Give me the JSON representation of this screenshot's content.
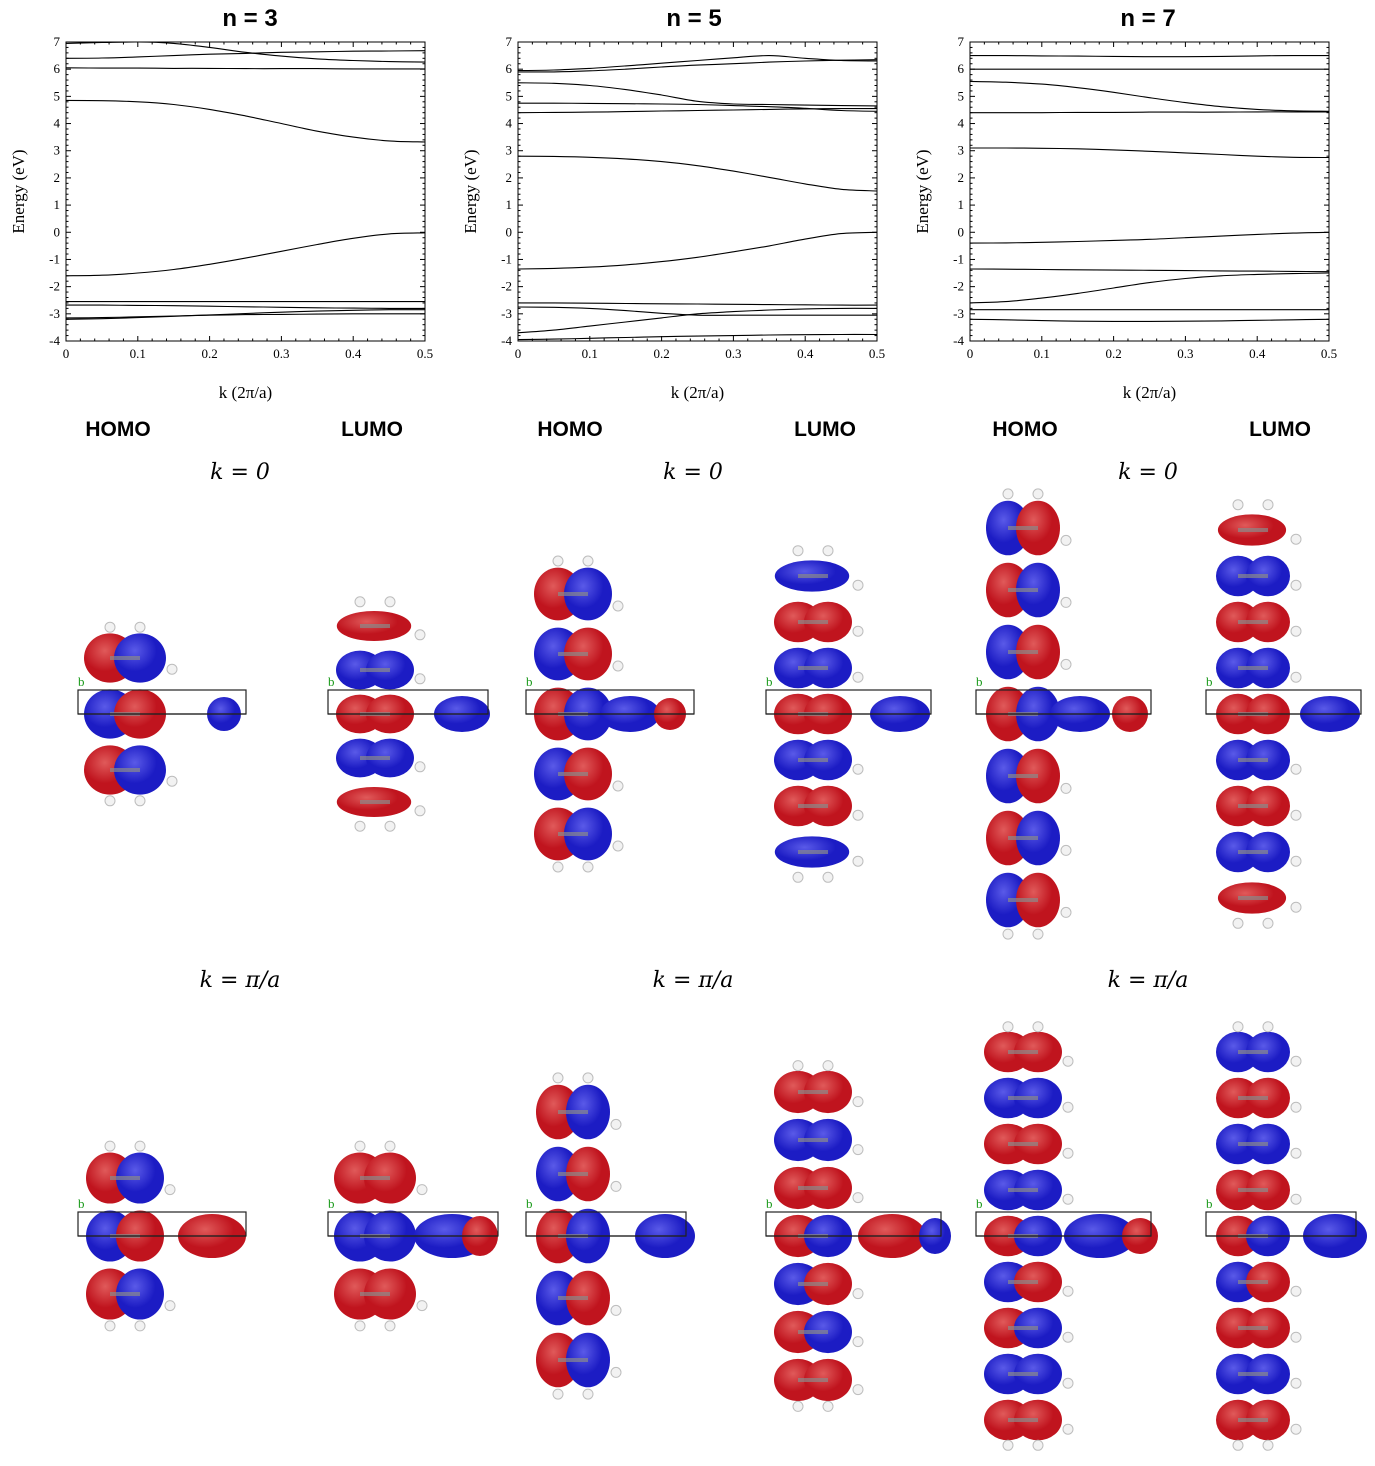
{
  "panel_titles": [
    "n = 3",
    "n = 5",
    "n = 7"
  ],
  "orbital_labels": [
    "HOMO",
    "LUMO",
    "HOMO",
    "LUMO",
    "HOMO",
    "LUMO"
  ],
  "k_labels": {
    "top": [
      "k = 0",
      "k = 0",
      "k = 0"
    ],
    "bottom": [
      "k = π/a",
      "k = π/a",
      "k = π/a"
    ]
  },
  "colors": {
    "positive_lobe": "#c0141e",
    "negative_lobe": "#1c1cc4",
    "cell_marker": "#1a9a1a"
  },
  "cell_axis_label": "b",
  "chart_data": [
    {
      "type": "line",
      "title": "n = 3",
      "xlabel": "k (2π/a)",
      "ylabel": "Energy (eV)",
      "xlim": [
        0,
        0.5
      ],
      "ylim": [
        -4,
        7
      ],
      "x_ticks": [
        "0",
        "0.1",
        "0.2",
        "0.3",
        "0.4",
        "0.5"
      ],
      "y_ticks": [
        "-4",
        "-3",
        "-2",
        "-1",
        "0",
        "1",
        "2",
        "3",
        "4",
        "5",
        "6",
        "7"
      ],
      "grid": false,
      "x": [
        0,
        0.05,
        0.1,
        0.15,
        0.2,
        0.25,
        0.3,
        0.35,
        0.4,
        0.45,
        0.5
      ],
      "series": [
        {
          "values": [
            -3.2,
            -3.18,
            -3.14,
            -3.09,
            -3.04,
            -2.99,
            -2.94,
            -2.9,
            -2.87,
            -2.85,
            -2.85
          ]
        },
        {
          "values": [
            -3.15,
            -3.14,
            -3.11,
            -3.08,
            -3.05,
            -3.03,
            -3.02,
            -3.01,
            -3.0,
            -3.0,
            -3.0
          ]
        },
        {
          "values": [
            -2.68,
            -2.68,
            -2.69,
            -2.7,
            -2.72,
            -2.74,
            -2.76,
            -2.78,
            -2.79,
            -2.8,
            -2.8
          ]
        },
        {
          "values": [
            -2.55,
            -2.55,
            -2.55,
            -2.55,
            -2.55,
            -2.55,
            -2.55,
            -2.55,
            -2.55,
            -2.55,
            -2.55
          ]
        },
        {
          "values": [
            -1.6,
            -1.58,
            -1.5,
            -1.37,
            -1.18,
            -0.95,
            -0.7,
            -0.45,
            -0.22,
            -0.06,
            -0.02
          ]
        },
        {
          "values": [
            4.85,
            4.84,
            4.8,
            4.7,
            4.52,
            4.28,
            4.0,
            3.72,
            3.5,
            3.36,
            3.32
          ]
        },
        {
          "values": [
            6.05,
            6.04,
            6.04,
            6.03,
            6.03,
            6.02,
            6.02,
            6.02,
            6.01,
            6.01,
            6.01
          ]
        },
        {
          "values": [
            6.4,
            6.41,
            6.45,
            6.5,
            6.55,
            6.58,
            6.62,
            6.64,
            6.66,
            6.67,
            6.68
          ]
        },
        {
          "values": [
            6.95,
            6.98,
            7.0,
            6.95,
            6.8,
            6.62,
            6.48,
            6.38,
            6.32,
            6.28,
            6.26
          ]
        }
      ]
    },
    {
      "type": "line",
      "title": "n = 5",
      "xlabel": "k (2π/a)",
      "ylabel": "Energy (eV)",
      "xlim": [
        0,
        0.5
      ],
      "ylim": [
        -4,
        7
      ],
      "x_ticks": [
        "0",
        "0.1",
        "0.2",
        "0.3",
        "0.4",
        "0.5"
      ],
      "y_ticks": [
        "-4",
        "-3",
        "-2",
        "-1",
        "0",
        "1",
        "2",
        "3",
        "4",
        "5",
        "6",
        "7"
      ],
      "grid": false,
      "x": [
        0,
        0.05,
        0.1,
        0.15,
        0.2,
        0.25,
        0.3,
        0.35,
        0.4,
        0.45,
        0.5
      ],
      "series": [
        {
          "values": [
            -3.95,
            -3.93,
            -3.9,
            -3.87,
            -3.84,
            -3.82,
            -3.8,
            -3.78,
            -3.77,
            -3.76,
            -3.76
          ]
        },
        {
          "values": [
            -3.7,
            -3.6,
            -3.45,
            -3.3,
            -3.15,
            -3.0,
            -2.92,
            -2.86,
            -2.82,
            -2.8,
            -2.8
          ]
        },
        {
          "values": [
            -2.75,
            -2.76,
            -2.8,
            -2.88,
            -2.98,
            -3.05,
            -3.05,
            -3.05,
            -3.05,
            -3.05,
            -3.05
          ]
        },
        {
          "values": [
            -2.6,
            -2.6,
            -2.61,
            -2.62,
            -2.63,
            -2.64,
            -2.65,
            -2.66,
            -2.67,
            -2.68,
            -2.68
          ]
        },
        {
          "values": [
            -1.35,
            -1.33,
            -1.28,
            -1.2,
            -1.08,
            -0.92,
            -0.72,
            -0.5,
            -0.25,
            -0.05,
            0.0
          ]
        },
        {
          "values": [
            2.8,
            2.79,
            2.76,
            2.7,
            2.6,
            2.45,
            2.25,
            2.02,
            1.78,
            1.58,
            1.52
          ]
        },
        {
          "values": [
            4.4,
            4.41,
            4.42,
            4.44,
            4.46,
            4.48,
            4.5,
            4.52,
            4.54,
            4.55,
            4.55
          ]
        },
        {
          "values": [
            4.75,
            4.75,
            4.74,
            4.73,
            4.72,
            4.7,
            4.66,
            4.62,
            4.56,
            4.48,
            4.45
          ]
        },
        {
          "values": [
            5.5,
            5.48,
            5.4,
            5.25,
            5.05,
            4.82,
            4.72,
            4.7,
            4.68,
            4.66,
            4.65
          ]
        },
        {
          "values": [
            5.9,
            5.9,
            5.94,
            6.0,
            6.08,
            6.15,
            6.2,
            6.26,
            6.3,
            6.33,
            6.35
          ]
        },
        {
          "values": [
            5.95,
            5.97,
            6.03,
            6.12,
            6.22,
            6.32,
            6.42,
            6.5,
            6.4,
            6.32,
            6.3
          ]
        }
      ]
    },
    {
      "type": "line",
      "title": "n = 7",
      "xlabel": "k (2π/a)",
      "ylabel": "Energy (eV)",
      "xlim": [
        0,
        0.5
      ],
      "ylim": [
        -4,
        7
      ],
      "x_ticks": [
        "0",
        "0.1",
        "0.2",
        "0.3",
        "0.4",
        "0.5"
      ],
      "y_ticks": [
        "-4",
        "-3",
        "-2",
        "-1",
        "0",
        "1",
        "2",
        "3",
        "4",
        "5",
        "6",
        "7"
      ],
      "grid": false,
      "x": [
        0,
        0.05,
        0.1,
        0.15,
        0.2,
        0.25,
        0.3,
        0.35,
        0.4,
        0.45,
        0.5
      ],
      "series": [
        {
          "values": [
            -3.2,
            -3.22,
            -3.25,
            -3.27,
            -3.28,
            -3.28,
            -3.27,
            -3.26,
            -3.24,
            -3.22,
            -3.2
          ]
        },
        {
          "values": [
            -2.85,
            -2.85,
            -2.85,
            -2.85,
            -2.85,
            -2.85,
            -2.85,
            -2.85,
            -2.85,
            -2.85,
            -2.85
          ]
        },
        {
          "values": [
            -2.6,
            -2.55,
            -2.42,
            -2.25,
            -2.05,
            -1.85,
            -1.7,
            -1.6,
            -1.55,
            -1.52,
            -1.5
          ]
        },
        {
          "values": [
            -1.35,
            -1.36,
            -1.37,
            -1.38,
            -1.39,
            -1.4,
            -1.41,
            -1.42,
            -1.43,
            -1.44,
            -1.45
          ]
        },
        {
          "values": [
            -0.4,
            -0.39,
            -0.37,
            -0.34,
            -0.3,
            -0.26,
            -0.2,
            -0.14,
            -0.08,
            -0.03,
            0.0
          ]
        },
        {
          "values": [
            3.1,
            3.1,
            3.09,
            3.07,
            3.03,
            2.98,
            2.92,
            2.86,
            2.8,
            2.76,
            2.75
          ]
        },
        {
          "values": [
            4.4,
            4.4,
            4.4,
            4.41,
            4.41,
            4.42,
            4.42,
            4.42,
            4.43,
            4.43,
            4.43
          ]
        },
        {
          "values": [
            5.55,
            5.52,
            5.45,
            5.32,
            5.15,
            4.95,
            4.77,
            4.62,
            4.52,
            4.47,
            4.45
          ]
        },
        {
          "values": [
            6.0,
            6.0,
            6.0,
            6.0,
            6.0,
            6.0,
            6.0,
            6.0,
            6.0,
            6.0,
            6.0
          ]
        },
        {
          "values": [
            6.5,
            6.5,
            6.49,
            6.48,
            6.47,
            6.46,
            6.46,
            6.47,
            6.49,
            6.5,
            6.5
          ]
        }
      ]
    }
  ]
}
